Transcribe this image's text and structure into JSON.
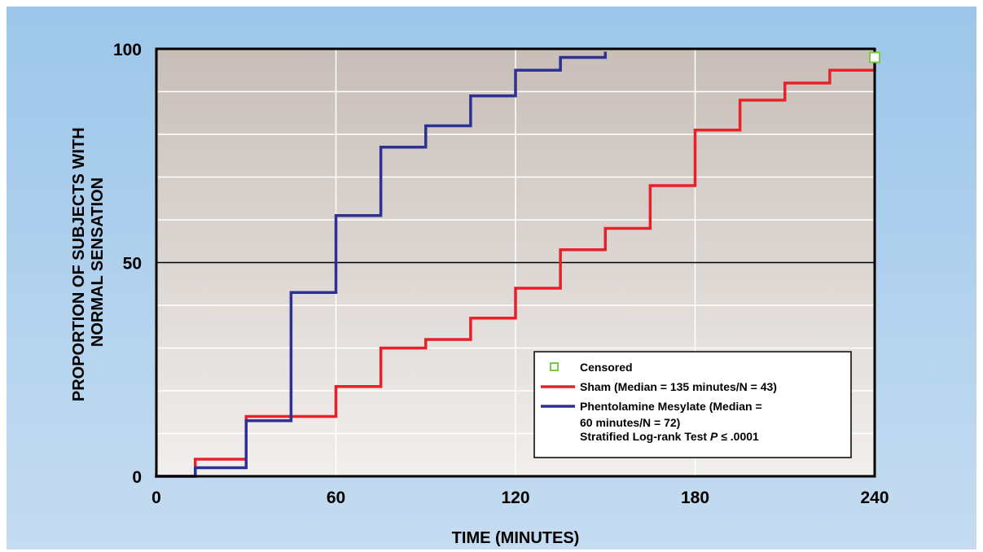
{
  "chart_data": {
    "type": "line",
    "title": "",
    "xlabel": "TIME (MINUTES)",
    "ylabel_lines": [
      "PROPORTION OF SUBJECTS WITH",
      "NORMAL SENSATION"
    ],
    "xlim": [
      0,
      240
    ],
    "ylim": [
      0,
      100
    ],
    "x_ticks": [
      0,
      60,
      120,
      180,
      240
    ],
    "x_tick_labels": [
      "0",
      "60",
      "120",
      "180",
      "240"
    ],
    "y_ticks": [
      0,
      50,
      100
    ],
    "y_tick_labels": [
      "0",
      "50",
      "100"
    ],
    "minor_gridlines_x": [
      60,
      120,
      180
    ],
    "minor_gridlines_y": [
      10,
      20,
      30,
      40,
      60,
      70,
      80,
      90
    ],
    "major_gridline_y": 50,
    "series": [
      {
        "name": "Sham (Median = 135 minutes/N = 43)",
        "color": "#e8202a",
        "step": "post",
        "x": [
          0,
          13,
          30,
          60,
          75,
          90,
          105,
          120,
          135,
          150,
          165,
          180,
          195,
          210,
          225,
          240
        ],
        "y": [
          0,
          4,
          14,
          21,
          30,
          32,
          37,
          44,
          53,
          58,
          68,
          81,
          88,
          92,
          95,
          97
        ]
      },
      {
        "name": "Phentolamine Mesylate (Median = 60 minutes/N = 72)",
        "color": "#2e3192",
        "step": "post",
        "x": [
          0,
          13,
          30,
          45,
          60,
          75,
          90,
          105,
          120,
          135,
          150
        ],
        "y": [
          0,
          2,
          13,
          43,
          61,
          77,
          82,
          89,
          95,
          98,
          99
        ]
      }
    ],
    "censored": {
      "name": "Censored",
      "color": "#7ac943",
      "points": [
        {
          "x": 240,
          "y": 98
        }
      ]
    },
    "legend": {
      "placement": "bottom-right",
      "entries": [
        {
          "marker": "square",
          "color": "#7ac943",
          "lines": [
            "Censored"
          ]
        },
        {
          "marker": "line",
          "color": "#e8202a",
          "lines": [
            "Sham (Median = 135 minutes/N = 43)"
          ]
        },
        {
          "marker": "line",
          "color": "#2e3192",
          "lines": [
            "Phentolamine Mesylate (Median =",
            "60 minutes/N = 72)"
          ]
        }
      ],
      "footnote_parts": [
        "Stratified Log-rank Test ",
        "P",
        " ≤ .0001"
      ]
    }
  }
}
